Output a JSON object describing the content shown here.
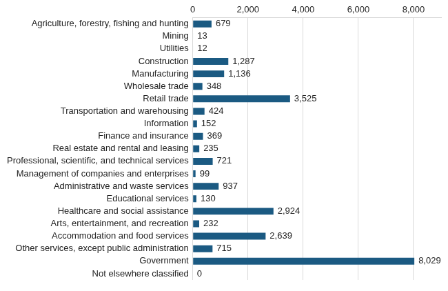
{
  "chart_data": {
    "type": "bar",
    "orientation": "horizontal",
    "categories": [
      "Agriculture, forestry, fishing and hunting",
      "Mining",
      "Utilities",
      "Construction",
      "Manufacturing",
      "Wholesale trade",
      "Retail trade",
      "Transportation and warehousing",
      "Information",
      "Finance and insurance",
      "Real estate and rental and leasing",
      "Professional, scientific, and technical services",
      "Management of companies and enterprises",
      "Administrative and waste services",
      "Educational services",
      "Healthcare and social assistance",
      "Arts, entertainment, and recreation",
      "Accommodation and food services",
      "Other services, except public administration",
      "Government",
      "Not elsewhere classified"
    ],
    "values": [
      679,
      13,
      12,
      1287,
      1136,
      348,
      3525,
      424,
      152,
      369,
      235,
      721,
      99,
      937,
      130,
      2924,
      232,
      2639,
      715,
      8029,
      0
    ],
    "value_labels": [
      "679",
      "13",
      "12",
      "1,287",
      "1,136",
      "348",
      "3,525",
      "424",
      "152",
      "369",
      "235",
      "721",
      "99",
      "937",
      "130",
      "2,924",
      "232",
      "2,639",
      "715",
      "8,029",
      "0"
    ],
    "color": "#1b5a82",
    "xlim": [
      0,
      9000
    ],
    "xticks": [
      0,
      {
        "value": 2000,
        "label": "2,000"
      },
      {
        "value": 4000,
        "label": "4,000"
      },
      {
        "value": 6000,
        "label": "6,000"
      },
      {
        "value": 8000,
        "label": "8,000"
      }
    ],
    "grid": true,
    "data_labels": true
  }
}
